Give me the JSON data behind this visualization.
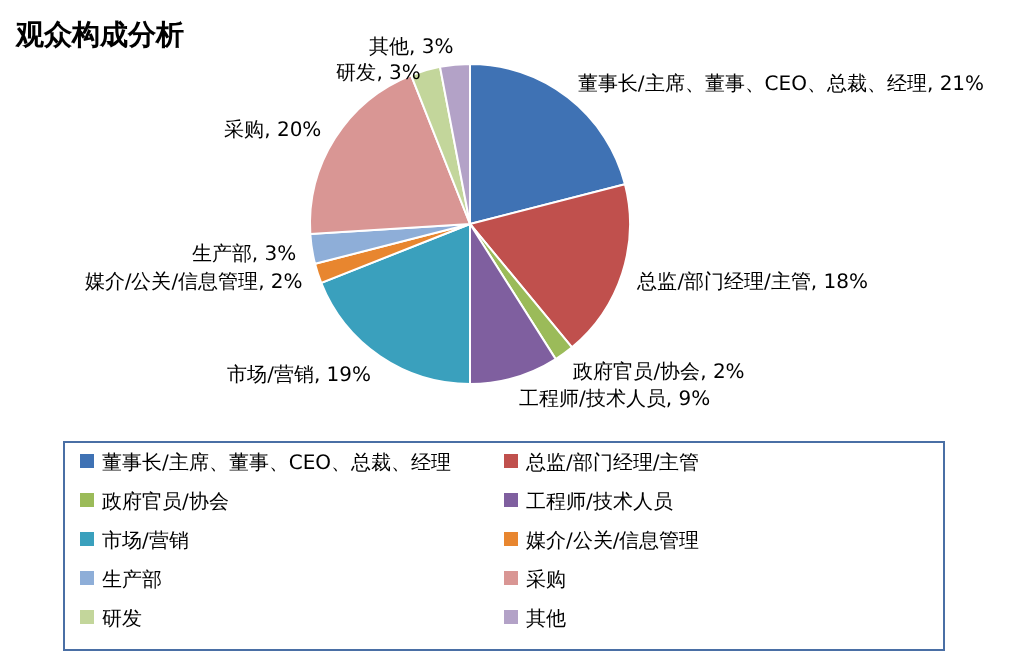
{
  "chart_data": {
    "type": "pie",
    "title": "观众构成分析",
    "categories": [
      "董事长/主席、董事、CEO、总裁、经理",
      "总监/部门经理/主管",
      "政府官员/协会",
      "工程师/技术人员",
      "市场/营销",
      "媒介/公关/信息管理",
      "生产部",
      "采购",
      "研发",
      "其他"
    ],
    "values": [
      21,
      18,
      2,
      9,
      19,
      2,
      3,
      20,
      3,
      3
    ],
    "value_labels": [
      "董事长/主席、董事、CEO、总裁、经理, 21%",
      "总监/部门经理/主管, 18%",
      "政府官员/协会, 2%",
      "工程师/技术人员, 9%",
      "市场/营销, 19%",
      "媒介/公关/信息管理, 2%",
      "生产部, 3%",
      "采购, 20%",
      "研发, 3%",
      "其他, 3%"
    ],
    "colors": [
      "#3f72b4",
      "#c0504d",
      "#9bbb59",
      "#7f5f9f",
      "#3aa0bd",
      "#e8862f",
      "#8eaed8",
      "#d99694",
      "#c3d69b",
      "#b3a2c7"
    ],
    "legend": "bottom"
  }
}
